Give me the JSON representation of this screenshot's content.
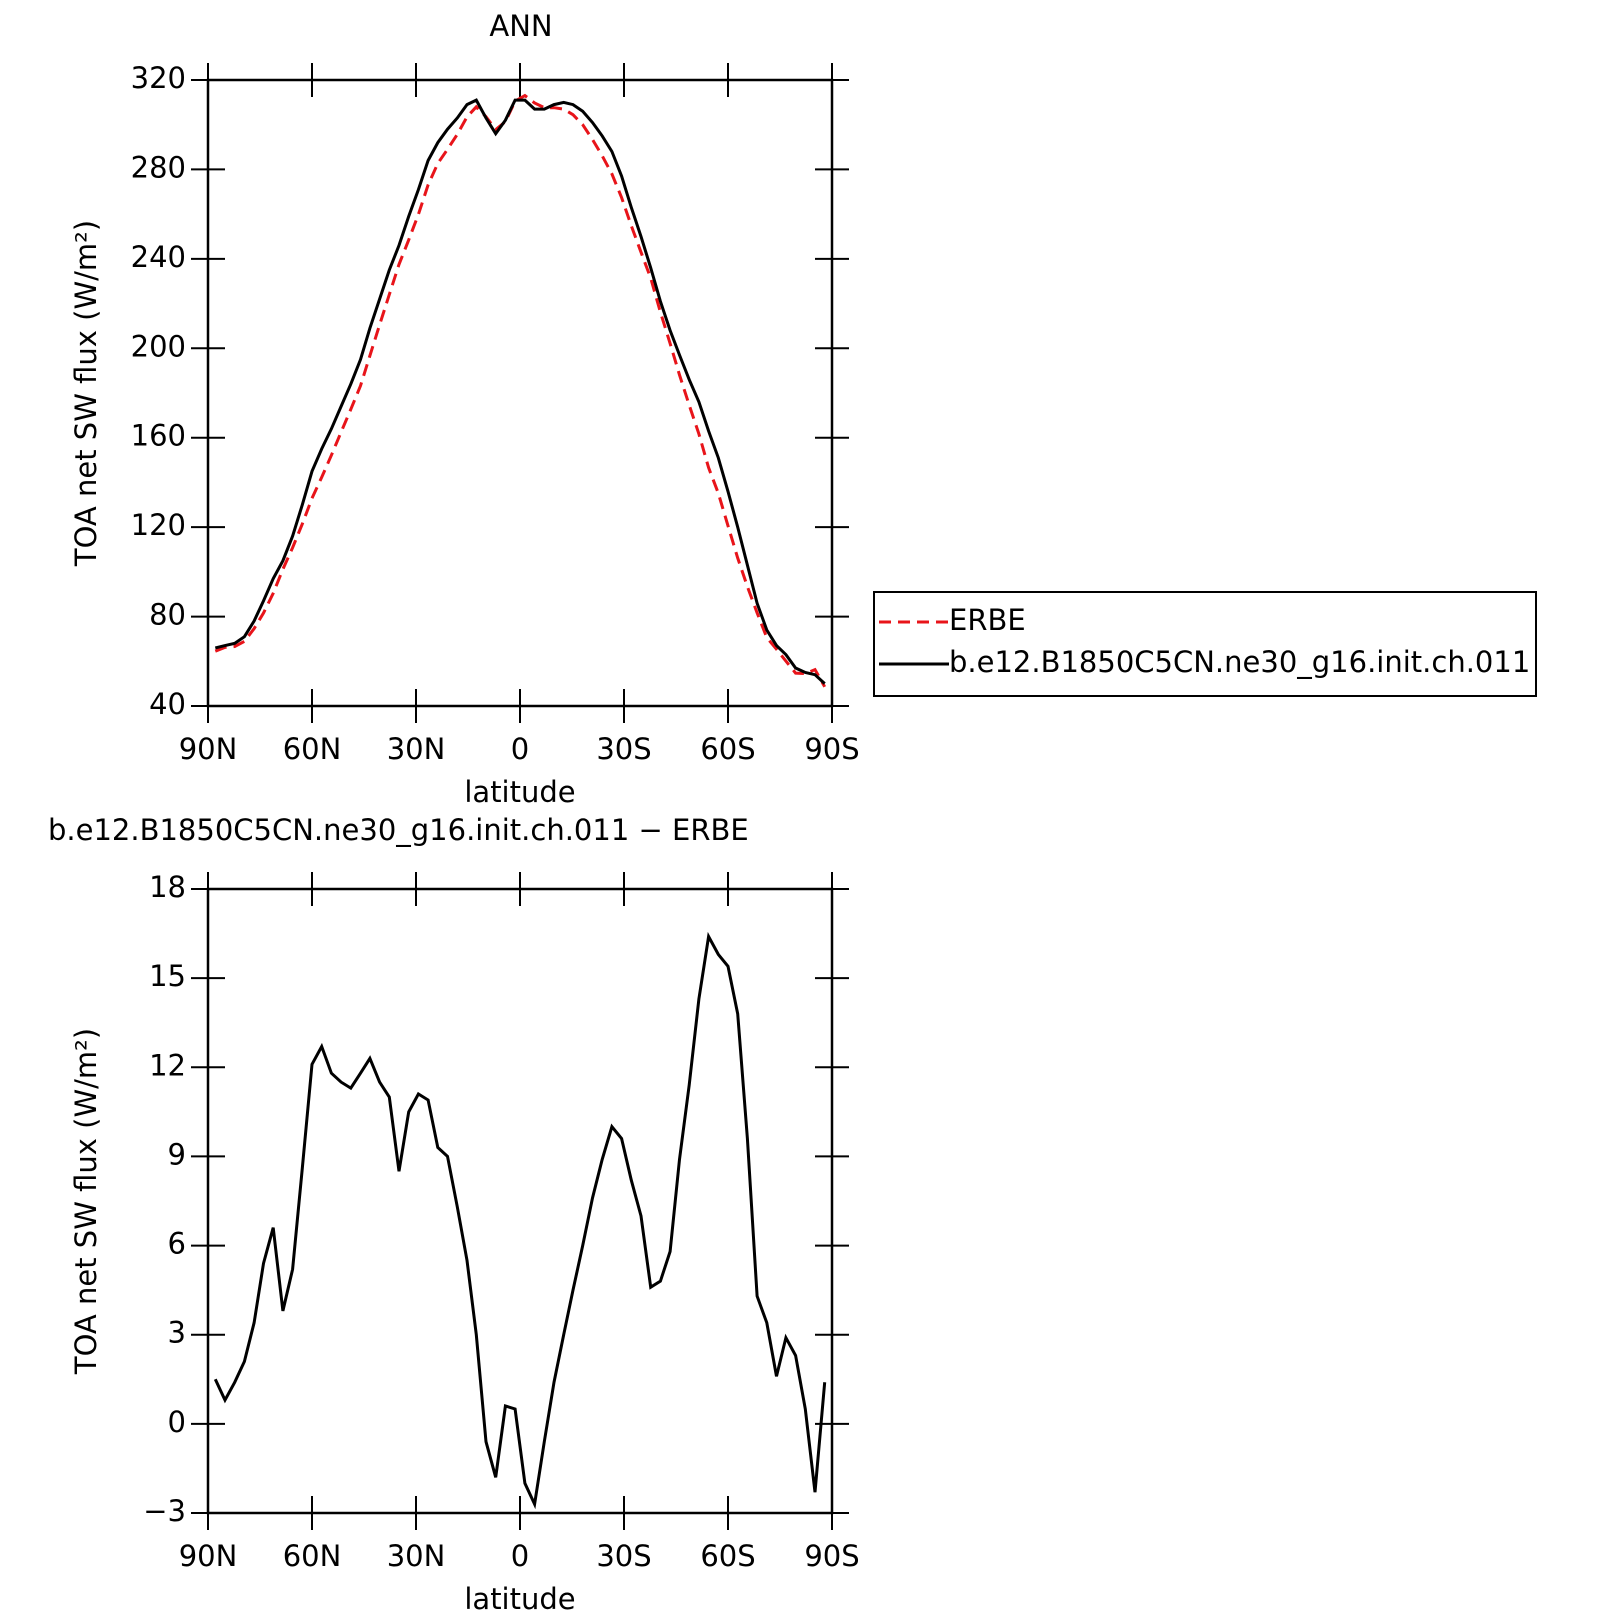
{
  "chart_data": [
    {
      "type": "line",
      "title": "ANN",
      "xlabel": "latitude",
      "ylabel": "TOA net SW flux (W/m²)",
      "x": [
        87.9,
        85.1,
        82.3,
        79.5,
        76.7,
        74.0,
        71.2,
        68.4,
        65.6,
        62.8,
        60.0,
        57.2,
        54.4,
        51.6,
        48.8,
        46.0,
        43.3,
        40.5,
        37.7,
        34.9,
        32.1,
        29.3,
        26.5,
        23.7,
        20.9,
        18.1,
        15.3,
        12.6,
        9.8,
        7.0,
        4.2,
        1.4,
        -1.4,
        -4.2,
        -7.0,
        -9.8,
        -12.6,
        -15.3,
        -18.1,
        -20.9,
        -23.7,
        -26.5,
        -29.3,
        -32.1,
        -34.9,
        -37.7,
        -40.5,
        -43.3,
        -46.0,
        -48.8,
        -51.6,
        -54.4,
        -57.2,
        -60.0,
        -62.8,
        -65.6,
        -68.4,
        -71.2,
        -74.0,
        -76.7,
        -79.5,
        -82.3,
        -85.1,
        -87.9
      ],
      "series": [
        {
          "name": "ERBE",
          "color": "#e8141a",
          "dash": true,
          "values": [
            64.5,
            66.2,
            66.6,
            68.9,
            74.6,
            81.6,
            90.4,
            101.2,
            110.8,
            121.4,
            132.9,
            142.3,
            152.2,
            162.5,
            172.7,
            183.2,
            196.7,
            210.5,
            224.0,
            237.5,
            248.5,
            259.9,
            273.1,
            282.7,
            289.0,
            295.7,
            303.5,
            308.0,
            303.6,
            297.8,
            301.4,
            310.5,
            313.0,
            309.7,
            307.6,
            307.6,
            307.0,
            304.5,
            300.0,
            293.4,
            286.1,
            278.0,
            267.4,
            254.8,
            243.0,
            231.4,
            216.2,
            202.2,
            188.1,
            174.6,
            161.7,
            146.6,
            135.2,
            120.6,
            106.2,
            93.4,
            81.7,
            70.6,
            65.4,
            60.1,
            54.7,
            54.5,
            56.3,
            48.6
          ]
        },
        {
          "name": "b.e12.B1850C5CN.ne30_g16.init.ch.011",
          "color": "#000000",
          "dash": false,
          "values": [
            66,
            67,
            68,
            71,
            78,
            87,
            97,
            105,
            116,
            130,
            145,
            155,
            164,
            174,
            184,
            195,
            209,
            222,
            235,
            246,
            259,
            271,
            284,
            292,
            298,
            303,
            309,
            311,
            303,
            296,
            302,
            311,
            311,
            307,
            307,
            309,
            310,
            309,
            306,
            301,
            295,
            288,
            277,
            263,
            250,
            236,
            221,
            208,
            197,
            186,
            176,
            163,
            151,
            136,
            120,
            103,
            86,
            74,
            67,
            63,
            57,
            55,
            54,
            50
          ]
        }
      ],
      "xlim": [
        90,
        -90
      ],
      "xticks": [
        {
          "value": 90,
          "label": "90N"
        },
        {
          "value": 60,
          "label": "60N"
        },
        {
          "value": 30,
          "label": "30N"
        },
        0,
        {
          "value": -30,
          "label": "30S"
        },
        {
          "value": -60,
          "label": "60S"
        },
        {
          "value": -90,
          "label": "90S"
        }
      ],
      "ylim": [
        40,
        320
      ],
      "yticks": [
        40,
        80,
        120,
        160,
        200,
        240,
        280,
        320
      ],
      "legend": "right"
    },
    {
      "type": "line",
      "title": "b.e12.B1850C5CN.ne30_g16.init.ch.011 − ERBE",
      "xlabel": "latitude",
      "ylabel": "TOA net SW flux (W/m²)",
      "x": [
        87.9,
        85.1,
        82.3,
        79.5,
        76.7,
        74.0,
        71.2,
        68.4,
        65.6,
        62.8,
        60.0,
        57.2,
        54.4,
        51.6,
        48.8,
        46.0,
        43.3,
        40.5,
        37.7,
        34.9,
        32.1,
        29.3,
        26.5,
        23.7,
        20.9,
        18.1,
        15.3,
        12.6,
        9.8,
        7.0,
        4.2,
        1.4,
        -1.4,
        -4.2,
        -7.0,
        -9.8,
        -12.6,
        -15.3,
        -18.1,
        -20.9,
        -23.7,
        -26.5,
        -29.3,
        -32.1,
        -34.9,
        -37.7,
        -40.5,
        -43.3,
        -46.0,
        -48.8,
        -51.6,
        -54.4,
        -57.2,
        -60.0,
        -62.8,
        -65.6,
        -68.4,
        -71.2,
        -74.0,
        -76.7,
        -79.5,
        -82.3,
        -85.1,
        -87.9
      ],
      "series": [
        {
          "color": "#000000",
          "dash": false,
          "values": [
            1.5,
            0.8,
            1.4,
            2.1,
            3.4,
            5.4,
            6.6,
            3.8,
            5.2,
            8.6,
            12.1,
            12.7,
            11.8,
            11.5,
            11.3,
            11.8,
            12.3,
            11.5,
            11.0,
            8.5,
            10.5,
            11.1,
            10.9,
            9.3,
            9.0,
            7.3,
            5.5,
            3.0,
            -0.6,
            -1.8,
            0.6,
            0.5,
            -2.0,
            -2.7,
            -0.6,
            1.4,
            3.0,
            4.5,
            6.0,
            7.6,
            8.9,
            10.0,
            9.6,
            8.2,
            7.0,
            4.6,
            4.8,
            5.8,
            8.9,
            11.4,
            14.3,
            16.4,
            15.8,
            15.4,
            13.8,
            9.6,
            4.3,
            3.4,
            1.6,
            2.9,
            2.3,
            0.5,
            -2.3,
            1.4
          ]
        }
      ],
      "xlim": [
        90,
        -90
      ],
      "xticks": [
        {
          "value": 90,
          "label": "90N"
        },
        {
          "value": 60,
          "label": "60N"
        },
        {
          "value": 30,
          "label": "30N"
        },
        0,
        {
          "value": -30,
          "label": "30S"
        },
        {
          "value": -60,
          "label": "60S"
        },
        {
          "value": -90,
          "label": "90S"
        }
      ],
      "ylim": [
        -3,
        18
      ],
      "yticks": [
        {
          "value": -3,
          "label": "−3"
        },
        0,
        3,
        6,
        9,
        12,
        15,
        18
      ]
    }
  ]
}
